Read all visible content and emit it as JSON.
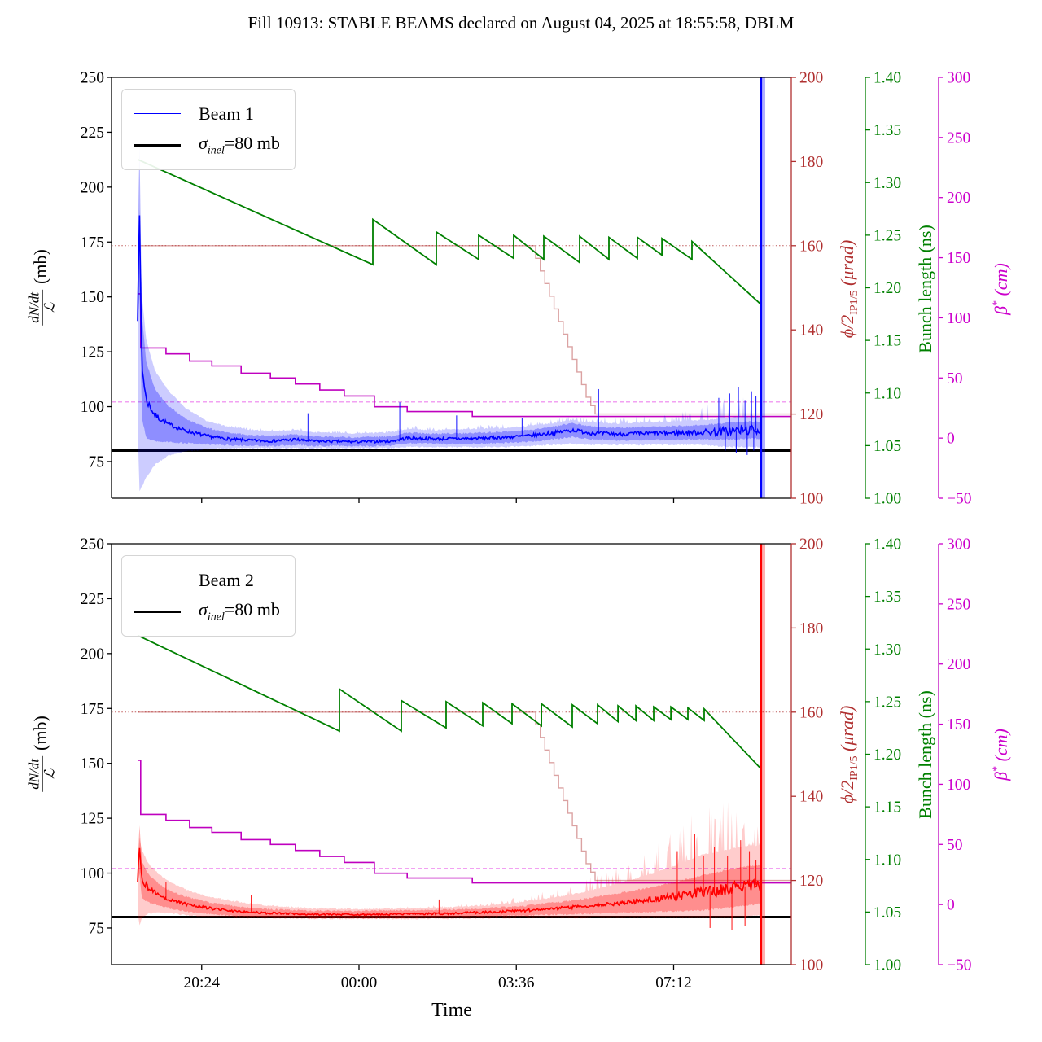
{
  "title": "Fill 10913: STABLE BEAMS declared on August 04, 2025 at 18:55:58, DBLM",
  "labels": {
    "xlabel": "Time",
    "mb": {
      "num": "dN/dt",
      "den": "ℒ",
      "unit": "(mb)"
    },
    "urad": {
      "main": "ϕ/2",
      "sub": "IP1/5",
      "unit": " (μrad)"
    },
    "ns": "Bunch length (ns)",
    "cm": {
      "main": "β",
      "sup": "*",
      "unit": " (cm)"
    },
    "sigma": {
      "sym": "σ",
      "sub": "inel",
      "rest": "=80 mb"
    }
  },
  "colors": {
    "beam1": "#0000ff",
    "beam2": "#ff0000",
    "bunch_length": "#008000",
    "crossing_angle": "#b03030",
    "beta_star": "#bf00bf",
    "beta_star_dashed": "#ee82ee",
    "sigma_line": "#000000"
  },
  "chart_data": {
    "type": "line",
    "time_axis": {
      "label": "Time",
      "tick_labels": [
        "20:24",
        "00:00",
        "03:36",
        "07:12"
      ],
      "tick_hours": [
        1.467,
        5.067,
        8.667,
        12.267
      ],
      "hours_range": [
        0,
        14.96
      ],
      "data_end_hour": 14.27
    },
    "axes": {
      "mb": {
        "range": [
          58.3,
          250
        ],
        "ticks": [
          "250",
          "225",
          "200",
          "175",
          "150",
          "125",
          "100",
          "75"
        ],
        "tick_values": [
          250,
          225,
          200,
          175,
          150,
          125,
          100,
          75
        ]
      },
      "urad": {
        "range": [
          100,
          200
        ],
        "ticks": [
          "200",
          "180",
          "160",
          "140",
          "120",
          "100"
        ],
        "tick_values": [
          200,
          180,
          160,
          140,
          120,
          100
        ]
      },
      "ns": {
        "range": [
          1.0,
          1.4
        ],
        "ticks": [
          "1.40",
          "1.35",
          "1.30",
          "1.25",
          "1.20",
          "1.15",
          "1.10",
          "1.05",
          "1.00"
        ],
        "tick_values": [
          1.4,
          1.35,
          1.3,
          1.25,
          1.2,
          1.15,
          1.1,
          1.05,
          1.0
        ]
      },
      "cm": {
        "range": [
          -50,
          300
        ],
        "ticks": [
          "300",
          "250",
          "200",
          "150",
          "100",
          "50",
          "0",
          "−50"
        ],
        "tick_values": [
          300,
          250,
          200,
          150,
          100,
          50,
          0,
          -50
        ]
      }
    },
    "reference_lines": {
      "sigma_inel_mb": 80,
      "crossing_angle_urad": 160,
      "beta_star_cm": 30
    },
    "crossing_angle_steps": [
      [
        0,
        160
      ],
      [
        9.11,
        157
      ],
      [
        9.215,
        154
      ],
      [
        9.32,
        151
      ],
      [
        9.425,
        148
      ],
      [
        9.53,
        145
      ],
      [
        9.635,
        142
      ],
      [
        9.74,
        139
      ],
      [
        9.845,
        136
      ],
      [
        9.95,
        133
      ],
      [
        10.055,
        130
      ],
      [
        10.16,
        127
      ],
      [
        10.265,
        124
      ],
      [
        10.37,
        122
      ],
      [
        10.47,
        120
      ],
      [
        14.96,
        120
      ]
    ],
    "beta_star_steps": [
      [
        0,
        120
      ],
      [
        0.07,
        75
      ],
      [
        0.65,
        70
      ],
      [
        1.19,
        64
      ],
      [
        1.7,
        60
      ],
      [
        2.37,
        54
      ],
      [
        3.04,
        50
      ],
      [
        3.61,
        45
      ],
      [
        4.17,
        40
      ],
      [
        4.73,
        35
      ],
      [
        5.42,
        26
      ],
      [
        6.17,
        22
      ],
      [
        7.66,
        18
      ],
      [
        14.96,
        18
      ]
    ],
    "panels": [
      {
        "beam": "Beam 1",
        "sigma_label": "σinel=80 mb",
        "bunch_length_ns": [
          [
            0,
            1.322
          ],
          [
            5.384,
            1.222
          ],
          [
            5.384,
            1.265
          ],
          [
            6.837,
            1.222
          ],
          [
            6.837,
            1.253
          ],
          [
            7.806,
            1.227
          ],
          [
            7.806,
            1.25
          ],
          [
            8.607,
            1.228
          ],
          [
            8.607,
            1.25
          ],
          [
            9.296,
            1.227
          ],
          [
            9.296,
            1.249
          ],
          [
            10.116,
            1.224
          ],
          [
            10.116,
            1.249
          ],
          [
            10.787,
            1.227
          ],
          [
            10.787,
            1.248
          ],
          [
            11.439,
            1.228
          ],
          [
            11.439,
            1.248
          ],
          [
            11.998,
            1.231
          ],
          [
            11.998,
            1.247
          ],
          [
            12.687,
            1.227
          ],
          [
            12.687,
            1.244
          ],
          [
            14.27,
            1.184
          ]
        ],
        "beam_anchors": [
          [
            0.0,
            140,
            95,
            160,
            1,
            0
          ],
          [
            0.04,
            191,
            62,
            192,
            1,
            0
          ],
          [
            0.1,
            118,
            64,
            150,
            2,
            0
          ],
          [
            0.2,
            103,
            68,
            130,
            2,
            0
          ],
          [
            0.4,
            96,
            74,
            116,
            1.5,
            0
          ],
          [
            0.7,
            92,
            78,
            107,
            1,
            0
          ],
          [
            1.1,
            89,
            80,
            99,
            0.8,
            0
          ],
          [
            1.6,
            86.5,
            81,
            93,
            0.8,
            0
          ],
          [
            2.2,
            85,
            81.5,
            90,
            0.7,
            1
          ],
          [
            3.0,
            84.3,
            81.5,
            88.5,
            0.6,
            1
          ],
          [
            3.6,
            85,
            81.5,
            89,
            0.8,
            1
          ],
          [
            4.0,
            84.3,
            81.5,
            88,
            0.6,
            1
          ],
          [
            5.0,
            84,
            81.5,
            87.5,
            0.6,
            1
          ],
          [
            5.8,
            84.3,
            81.5,
            88,
            0.6,
            1
          ],
          [
            6.2,
            85.8,
            82,
            89.5,
            0.8,
            1.5
          ],
          [
            6.8,
            85.3,
            82,
            89,
            0.7,
            1.5
          ],
          [
            7.6,
            85.5,
            82,
            89.5,
            0.7,
            1.5
          ],
          [
            8.4,
            86,
            82,
            90,
            0.8,
            2
          ],
          [
            9.0,
            86.8,
            82.5,
            91,
            0.8,
            2
          ],
          [
            9.6,
            88.3,
            83,
            92.5,
            0.9,
            2
          ],
          [
            9.95,
            89.3,
            83.5,
            93.5,
            0.9,
            2
          ],
          [
            10.4,
            88,
            83,
            92.5,
            0.9,
            2
          ],
          [
            11.0,
            87.5,
            83,
            92,
            0.9,
            3
          ],
          [
            11.6,
            87.8,
            83,
            92.5,
            1,
            3
          ],
          [
            12.2,
            88,
            83,
            93,
            1,
            4
          ],
          [
            12.8,
            88.3,
            83,
            93.5,
            1.2,
            6
          ],
          [
            13.2,
            88.5,
            82.5,
            94,
            1.8,
            9
          ],
          [
            13.6,
            89,
            82,
            95,
            2.2,
            10
          ],
          [
            14.0,
            89.3,
            82,
            95,
            2.2,
            10
          ],
          [
            14.27,
            89.5,
            82,
            95,
            2,
            9
          ]
        ],
        "spikes_up": [
          [
            3.9,
            97
          ],
          [
            6.0,
            102
          ],
          [
            7.3,
            96
          ],
          [
            8.8,
            95
          ],
          [
            10.55,
            108
          ],
          [
            13.3,
            104
          ],
          [
            13.55,
            106
          ],
          [
            13.75,
            109
          ],
          [
            13.9,
            103
          ],
          [
            14.05,
            107
          ],
          [
            14.15,
            105
          ]
        ],
        "spikes_down": [
          [
            13.45,
            80
          ],
          [
            13.7,
            79
          ],
          [
            13.95,
            78
          ],
          [
            14.1,
            80
          ]
        ]
      },
      {
        "beam": "Beam 2",
        "sigma_label": "σinel=80 mb",
        "bunch_length_ns": [
          [
            0,
            1.313
          ],
          [
            4.62,
            1.222
          ],
          [
            4.62,
            1.262
          ],
          [
            6.036,
            1.222
          ],
          [
            6.036,
            1.251
          ],
          [
            7.061,
            1.225
          ],
          [
            7.061,
            1.25
          ],
          [
            7.899,
            1.227
          ],
          [
            7.899,
            1.249
          ],
          [
            8.57,
            1.229
          ],
          [
            8.57,
            1.248
          ],
          [
            9.241,
            1.227
          ],
          [
            9.241,
            1.248
          ],
          [
            9.948,
            1.226
          ],
          [
            9.948,
            1.247
          ],
          [
            10.526,
            1.229
          ],
          [
            10.526,
            1.247
          ],
          [
            10.992,
            1.231
          ],
          [
            10.992,
            1.246
          ],
          [
            11.402,
            1.232
          ],
          [
            11.402,
            1.246
          ],
          [
            11.811,
            1.232
          ],
          [
            11.811,
            1.245
          ],
          [
            12.203,
            1.233
          ],
          [
            12.203,
            1.245
          ],
          [
            12.594,
            1.233
          ],
          [
            12.594,
            1.244
          ],
          [
            12.966,
            1.232
          ],
          [
            12.966,
            1.243
          ],
          [
            14.27,
            1.186
          ]
        ],
        "beam_anchors": [
          [
            0.0,
            96,
            84,
            100,
            1,
            0
          ],
          [
            0.04,
            112,
            76,
            116,
            1,
            0
          ],
          [
            0.1,
            97,
            80,
            110,
            1.5,
            0
          ],
          [
            0.25,
            93,
            82,
            104,
            1.2,
            0
          ],
          [
            0.5,
            90,
            82.5,
            99,
            1,
            0
          ],
          [
            0.8,
            87.5,
            82,
            95,
            0.8,
            0
          ],
          [
            1.2,
            85.5,
            81,
            91.5,
            0.7,
            0
          ],
          [
            1.7,
            83.8,
            80.5,
            88.5,
            0.6,
            0.5
          ],
          [
            2.3,
            82.5,
            80,
            86.5,
            0.5,
            0.5
          ],
          [
            3.0,
            81.8,
            79.8,
            84.8,
            0.5,
            0.5
          ],
          [
            4.0,
            81.2,
            79.5,
            83.5,
            0.4,
            0.5
          ],
          [
            5.0,
            81.1,
            79.5,
            83.3,
            0.4,
            0.5
          ],
          [
            6.0,
            81.3,
            79.5,
            83.5,
            0.4,
            0.8
          ],
          [
            7.0,
            81.6,
            79.6,
            84,
            0.5,
            1
          ],
          [
            8.0,
            82.2,
            79.8,
            85,
            0.5,
            1.5
          ],
          [
            8.8,
            82.8,
            80,
            86.5,
            0.6,
            2.5
          ],
          [
            9.5,
            83.8,
            80,
            88.5,
            0.7,
            4
          ],
          [
            10.2,
            84.8,
            80,
            91,
            0.8,
            6
          ],
          [
            11.0,
            86.3,
            80,
            95,
            1,
            9
          ],
          [
            11.7,
            87.8,
            80,
            99,
            1.3,
            13
          ],
          [
            12.3,
            89.3,
            80,
            103,
            1.8,
            18
          ],
          [
            12.9,
            91,
            80,
            108,
            2.5,
            22
          ],
          [
            13.4,
            92.5,
            80,
            110,
            2.8,
            24
          ],
          [
            13.9,
            94,
            80.5,
            112,
            2.8,
            25
          ],
          [
            14.27,
            95,
            81,
            112,
            2.5,
            22
          ]
        ],
        "spikes_up": [
          [
            0.65,
            96
          ],
          [
            2.6,
            90
          ],
          [
            6.9,
            88
          ],
          [
            12.35,
            110
          ],
          [
            12.75,
            118
          ],
          [
            12.95,
            108
          ],
          [
            13.2,
            112
          ],
          [
            13.5,
            108
          ],
          [
            13.8,
            115
          ],
          [
            14.0,
            110
          ],
          [
            14.15,
            106
          ]
        ],
        "spikes_down": [
          [
            13.1,
            75
          ],
          [
            13.6,
            74
          ],
          [
            13.9,
            76
          ]
        ]
      }
    ]
  }
}
